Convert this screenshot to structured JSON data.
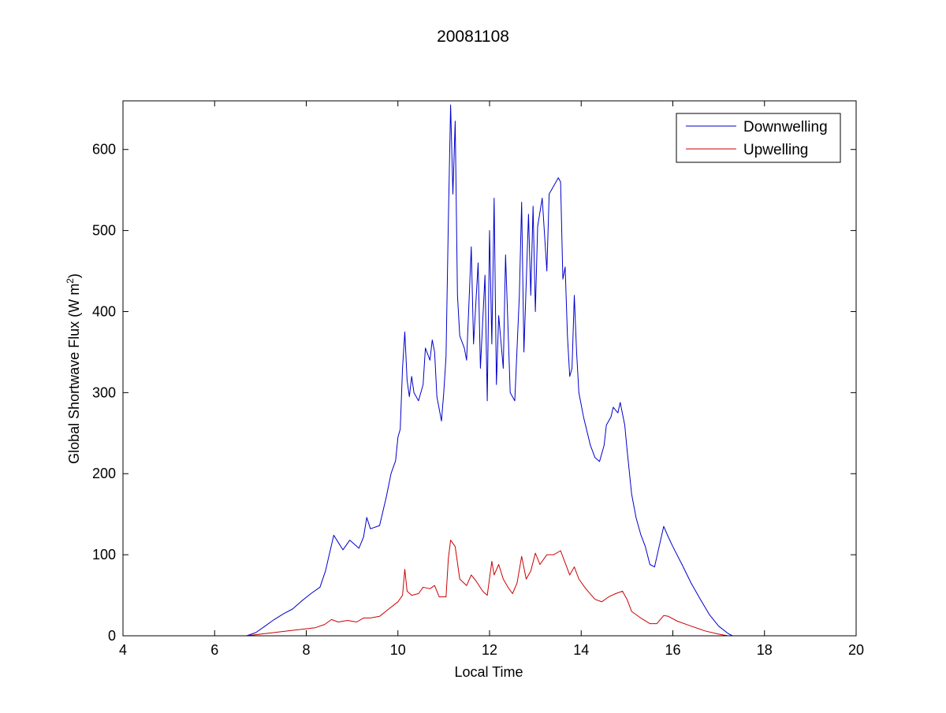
{
  "chart_data": {
    "type": "line",
    "title": "20081108",
    "xlabel": "Local Time",
    "ylabel": "Global Shortwave Flux (W m",
    "ylabel_sup": "2",
    "ylabel_end": ")",
    "xlim": [
      4,
      20
    ],
    "ylim": [
      0,
      660
    ],
    "x_ticks": [
      4,
      6,
      8,
      10,
      12,
      14,
      16,
      18,
      20
    ],
    "y_ticks": [
      0,
      100,
      200,
      300,
      400,
      500,
      600
    ],
    "grid": false,
    "legend_position": "top-right",
    "series": [
      {
        "name": "Downwelling",
        "color": "#0000cc",
        "points": [
          [
            4,
            0
          ],
          [
            6.7,
            0
          ],
          [
            6.9,
            4
          ],
          [
            7.1,
            12
          ],
          [
            7.3,
            20
          ],
          [
            7.5,
            27
          ],
          [
            7.7,
            33
          ],
          [
            7.9,
            43
          ],
          [
            8.1,
            52
          ],
          [
            8.3,
            60
          ],
          [
            8.42,
            80
          ],
          [
            8.5,
            100
          ],
          [
            8.6,
            124
          ],
          [
            8.7,
            115
          ],
          [
            8.8,
            106
          ],
          [
            8.95,
            118
          ],
          [
            9.05,
            113
          ],
          [
            9.15,
            108
          ],
          [
            9.25,
            122
          ],
          [
            9.32,
            146
          ],
          [
            9.4,
            132
          ],
          [
            9.6,
            136
          ],
          [
            9.75,
            172
          ],
          [
            9.85,
            200
          ],
          [
            9.95,
            216
          ],
          [
            10.0,
            245
          ],
          [
            10.05,
            255
          ],
          [
            10.1,
            330
          ],
          [
            10.15,
            375
          ],
          [
            10.2,
            315
          ],
          [
            10.25,
            295
          ],
          [
            10.3,
            320
          ],
          [
            10.35,
            300
          ],
          [
            10.45,
            290
          ],
          [
            10.55,
            310
          ],
          [
            10.6,
            355
          ],
          [
            10.7,
            340
          ],
          [
            10.75,
            365
          ],
          [
            10.8,
            350
          ],
          [
            10.85,
            295
          ],
          [
            10.95,
            265
          ],
          [
            11.0,
            300
          ],
          [
            11.05,
            345
          ],
          [
            11.1,
            510
          ],
          [
            11.15,
            655
          ],
          [
            11.2,
            545
          ],
          [
            11.25,
            635
          ],
          [
            11.3,
            420
          ],
          [
            11.35,
            370
          ],
          [
            11.45,
            355
          ],
          [
            11.5,
            340
          ],
          [
            11.6,
            480
          ],
          [
            11.65,
            360
          ],
          [
            11.75,
            460
          ],
          [
            11.8,
            330
          ],
          [
            11.9,
            445
          ],
          [
            11.95,
            290
          ],
          [
            12.0,
            500
          ],
          [
            12.05,
            360
          ],
          [
            12.1,
            540
          ],
          [
            12.15,
            310
          ],
          [
            12.2,
            395
          ],
          [
            12.3,
            330
          ],
          [
            12.35,
            470
          ],
          [
            12.45,
            300
          ],
          [
            12.55,
            290
          ],
          [
            12.65,
            420
          ],
          [
            12.7,
            535
          ],
          [
            12.75,
            350
          ],
          [
            12.85,
            520
          ],
          [
            12.9,
            420
          ],
          [
            12.95,
            530
          ],
          [
            13.0,
            400
          ],
          [
            13.05,
            505
          ],
          [
            13.15,
            540
          ],
          [
            13.25,
            450
          ],
          [
            13.3,
            545
          ],
          [
            13.4,
            555
          ],
          [
            13.5,
            565
          ],
          [
            13.55,
            560
          ],
          [
            13.6,
            440
          ],
          [
            13.65,
            455
          ],
          [
            13.7,
            370
          ],
          [
            13.75,
            320
          ],
          [
            13.8,
            330
          ],
          [
            13.85,
            420
          ],
          [
            13.9,
            350
          ],
          [
            13.95,
            300
          ],
          [
            14.05,
            270
          ],
          [
            14.2,
            235
          ],
          [
            14.3,
            220
          ],
          [
            14.4,
            215
          ],
          [
            14.5,
            235
          ],
          [
            14.55,
            260
          ],
          [
            14.65,
            270
          ],
          [
            14.7,
            282
          ],
          [
            14.8,
            275
          ],
          [
            14.85,
            288
          ],
          [
            14.95,
            260
          ],
          [
            15.0,
            230
          ],
          [
            15.1,
            175
          ],
          [
            15.2,
            145
          ],
          [
            15.3,
            125
          ],
          [
            15.4,
            110
          ],
          [
            15.5,
            88
          ],
          [
            15.6,
            85
          ],
          [
            15.7,
            110
          ],
          [
            15.8,
            135
          ],
          [
            15.9,
            122
          ],
          [
            16.0,
            110
          ],
          [
            16.2,
            88
          ],
          [
            16.4,
            65
          ],
          [
            16.6,
            45
          ],
          [
            16.8,
            26
          ],
          [
            17.0,
            12
          ],
          [
            17.2,
            3
          ],
          [
            17.3,
            0
          ],
          [
            20,
            0
          ]
        ]
      },
      {
        "name": "Upwelling",
        "color": "#cc0000",
        "points": [
          [
            4,
            0
          ],
          [
            6.7,
            0
          ],
          [
            7.0,
            2
          ],
          [
            7.3,
            4
          ],
          [
            7.6,
            6
          ],
          [
            7.9,
            8
          ],
          [
            8.2,
            10
          ],
          [
            8.4,
            14
          ],
          [
            8.55,
            20
          ],
          [
            8.7,
            17
          ],
          [
            8.9,
            19
          ],
          [
            9.1,
            17
          ],
          [
            9.25,
            22
          ],
          [
            9.4,
            22
          ],
          [
            9.6,
            24
          ],
          [
            9.8,
            33
          ],
          [
            10.0,
            42
          ],
          [
            10.1,
            50
          ],
          [
            10.15,
            82
          ],
          [
            10.2,
            55
          ],
          [
            10.3,
            50
          ],
          [
            10.45,
            52
          ],
          [
            10.55,
            60
          ],
          [
            10.7,
            58
          ],
          [
            10.8,
            62
          ],
          [
            10.9,
            48
          ],
          [
            11.05,
            48
          ],
          [
            11.1,
            95
          ],
          [
            11.15,
            118
          ],
          [
            11.25,
            110
          ],
          [
            11.35,
            70
          ],
          [
            11.5,
            62
          ],
          [
            11.6,
            75
          ],
          [
            11.7,
            68
          ],
          [
            11.85,
            55
          ],
          [
            11.95,
            50
          ],
          [
            12.05,
            92
          ],
          [
            12.1,
            75
          ],
          [
            12.2,
            88
          ],
          [
            12.3,
            70
          ],
          [
            12.4,
            60
          ],
          [
            12.5,
            52
          ],
          [
            12.6,
            65
          ],
          [
            12.7,
            98
          ],
          [
            12.8,
            70
          ],
          [
            12.9,
            80
          ],
          [
            13.0,
            102
          ],
          [
            13.1,
            88
          ],
          [
            13.25,
            100
          ],
          [
            13.4,
            100
          ],
          [
            13.55,
            105
          ],
          [
            13.65,
            90
          ],
          [
            13.75,
            75
          ],
          [
            13.85,
            85
          ],
          [
            13.95,
            70
          ],
          [
            14.1,
            58
          ],
          [
            14.3,
            45
          ],
          [
            14.45,
            42
          ],
          [
            14.6,
            48
          ],
          [
            14.75,
            52
          ],
          [
            14.9,
            55
          ],
          [
            15.0,
            45
          ],
          [
            15.1,
            30
          ],
          [
            15.3,
            22
          ],
          [
            15.5,
            15
          ],
          [
            15.65,
            15
          ],
          [
            15.8,
            25
          ],
          [
            15.9,
            24
          ],
          [
            16.1,
            18
          ],
          [
            16.4,
            12
          ],
          [
            16.7,
            6
          ],
          [
            17.0,
            2
          ],
          [
            17.2,
            0
          ],
          [
            20,
            0
          ]
        ]
      }
    ]
  }
}
